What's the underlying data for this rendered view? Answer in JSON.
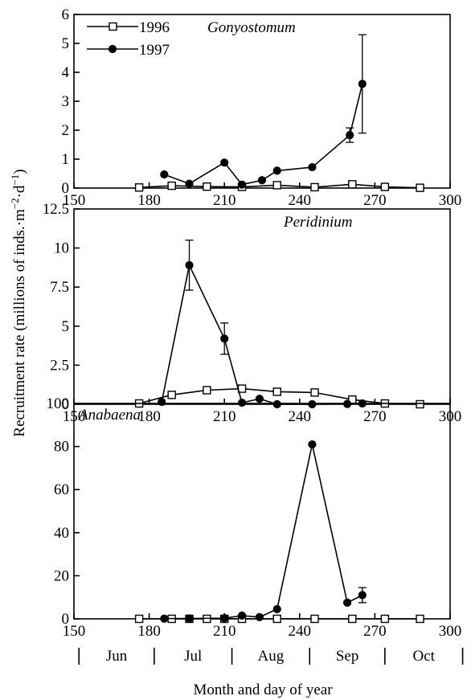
{
  "figure": {
    "ylabel_main": "Recruitment rate (millions of inds.·m",
    "ylabel_sup1": "−2",
    "ylabel_mid": "·d",
    "ylabel_sup2": "−1",
    "ylabel_end": ")",
    "xlabel": "Month and day of year",
    "months": [
      "Jun",
      "Jul",
      "Aug",
      "Sep",
      "Oct"
    ]
  },
  "chart_data": [
    {
      "type": "line",
      "title": "Gonyostomum",
      "xlim": [
        150,
        300
      ],
      "ylim": [
        0,
        6
      ],
      "xticks": [
        150,
        180,
        210,
        240,
        270,
        300
      ],
      "yticks": [
        0,
        1,
        2,
        3,
        4,
        5,
        6
      ],
      "yticklabels": [
        "0",
        "1",
        "2",
        "3",
        "4",
        "5",
        "6"
      ],
      "legend": "top-left",
      "series": [
        {
          "name": "1996",
          "marker": "open-square",
          "x": [
            176,
            189,
            203,
            217,
            231,
            246,
            261,
            274,
            288
          ],
          "y": [
            0.02,
            0.08,
            0.05,
            0.04,
            0.1,
            0.03,
            0.13,
            0.04,
            0.01
          ]
        },
        {
          "name": "1997",
          "marker": "filled-circle",
          "x": [
            186,
            196,
            210,
            217,
            225,
            231,
            245,
            260,
            265
          ],
          "y": [
            0.47,
            0.15,
            0.88,
            0.12,
            0.27,
            0.6,
            0.72,
            1.83,
            3.6
          ],
          "yerr": [
            0,
            0,
            0,
            0,
            0,
            0,
            0,
            0.25,
            1.7
          ]
        }
      ]
    },
    {
      "type": "line",
      "title": "Peridinium",
      "xlim": [
        150,
        300
      ],
      "ylim": [
        0,
        12.5
      ],
      "xticks": [
        150,
        180,
        210,
        240,
        270,
        300
      ],
      "yticks": [
        0,
        2.5,
        5,
        7.5,
        10,
        12.5
      ],
      "yticklabels": [
        "0",
        "2.5",
        "5",
        "7.5",
        "10",
        "12.5"
      ],
      "series": [
        {
          "name": "1996",
          "marker": "open-square",
          "x": [
            176,
            189,
            203,
            217,
            231,
            246,
            261,
            274,
            288
          ],
          "y": [
            0.05,
            0.6,
            0.9,
            1.0,
            0.8,
            0.75,
            0.3,
            0.05,
            0.0
          ],
          "yerr": [
            0,
            0,
            0,
            0,
            0,
            0,
            0,
            0,
            0
          ]
        },
        {
          "name": "1997",
          "marker": "filled-circle",
          "x": [
            185,
            196,
            210,
            217,
            224,
            231,
            245,
            259,
            265
          ],
          "y": [
            0.15,
            8.9,
            4.2,
            0.1,
            0.35,
            0.0,
            0.0,
            0.02,
            0.05
          ],
          "yerr": [
            0,
            1.6,
            1.0,
            0,
            0,
            0,
            0,
            0,
            0
          ]
        }
      ]
    },
    {
      "type": "line",
      "title": "Anabaena",
      "xlim": [
        150,
        300
      ],
      "ylim": [
        0,
        100
      ],
      "xticks": [
        150,
        180,
        210,
        240,
        270,
        300
      ],
      "yticks": [
        0,
        20,
        40,
        60,
        80,
        100
      ],
      "yticklabels": [
        "0",
        "20",
        "40",
        "60",
        "80",
        "100"
      ],
      "series": [
        {
          "name": "1996",
          "marker": "open-square",
          "x": [
            176,
            189,
            196,
            203,
            210,
            217,
            231,
            246,
            261,
            274,
            288
          ],
          "y": [
            0,
            0,
            0,
            0,
            0,
            0,
            0,
            0,
            0,
            0,
            0
          ]
        },
        {
          "name": "1997",
          "marker": "filled-circle",
          "x": [
            186,
            196,
            210,
            217,
            224,
            231,
            245,
            259,
            265
          ],
          "y": [
            0.1,
            0.2,
            0.3,
            1.5,
            0.8,
            4.5,
            81,
            7.5,
            11
          ],
          "yerr": [
            0,
            0,
            0,
            0,
            0,
            0,
            0,
            0,
            3.5
          ]
        }
      ]
    }
  ]
}
